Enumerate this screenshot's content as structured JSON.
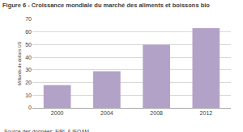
{
  "chart_data": {
    "type": "bar",
    "title": "Figure 6 - Croissance mondiale du marché des aliments et boissons bio",
    "y_label": "Milliards de dollars US",
    "source": "Source des données: FiBL & IFOAM.",
    "categories": [
      "2000",
      "2004",
      "2008",
      "2012"
    ],
    "values": [
      18,
      29,
      50,
      63
    ],
    "color": "#b3a2c7",
    "ylim": [
      0,
      70
    ],
    "yticks": [
      0,
      10,
      20,
      30,
      40,
      50,
      60,
      70
    ],
    "grid": true
  }
}
